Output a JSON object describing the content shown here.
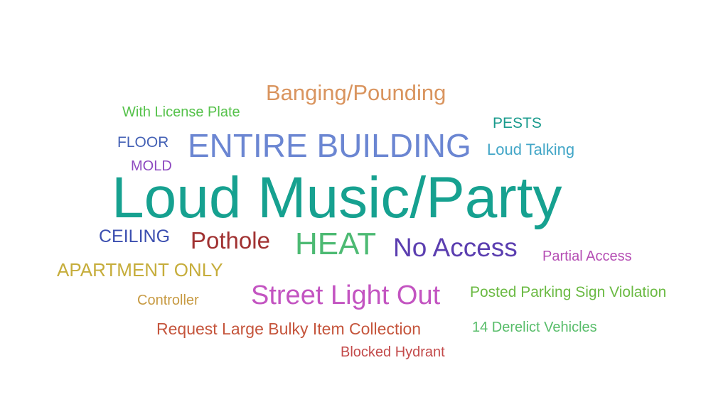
{
  "words": [
    {
      "text": "Loud Music/Party",
      "color": "#16a190"
    },
    {
      "text": "ENTIRE BUILDING",
      "color": "#6b86d2"
    },
    {
      "text": "Banging/Pounding",
      "color": "#d9945e"
    },
    {
      "text": "HEAT",
      "color": "#4dba73"
    },
    {
      "text": "No Access",
      "color": "#5b3eb0"
    },
    {
      "text": "Street Light Out",
      "color": "#c354c1"
    },
    {
      "text": "Pothole",
      "color": "#a13232"
    },
    {
      "text": "APARTMENT ONLY",
      "color": "#c6ad3b"
    },
    {
      "text": "Request Large Bulky Item Collection",
      "color": "#c5553c"
    },
    {
      "text": "CEILING",
      "color": "#3c4fb0"
    },
    {
      "text": "Posted Parking Sign Violation",
      "color": "#6bba43"
    },
    {
      "text": "Loud Talking",
      "color": "#42a6c7"
    },
    {
      "text": "With License Plate",
      "color": "#56c24b"
    },
    {
      "text": "14 Derelict Vehicles",
      "color": "#58bd6a"
    },
    {
      "text": "PESTS",
      "color": "#1a9b8d"
    },
    {
      "text": "FLOOR",
      "color": "#4461b5"
    },
    {
      "text": "MOLD",
      "color": "#8e4ac0"
    },
    {
      "text": "Partial Access",
      "color": "#b54eb4"
    },
    {
      "text": "Controller",
      "color": "#c79a42"
    },
    {
      "text": "Blocked Hydrant",
      "color": "#c34a4a"
    }
  ]
}
